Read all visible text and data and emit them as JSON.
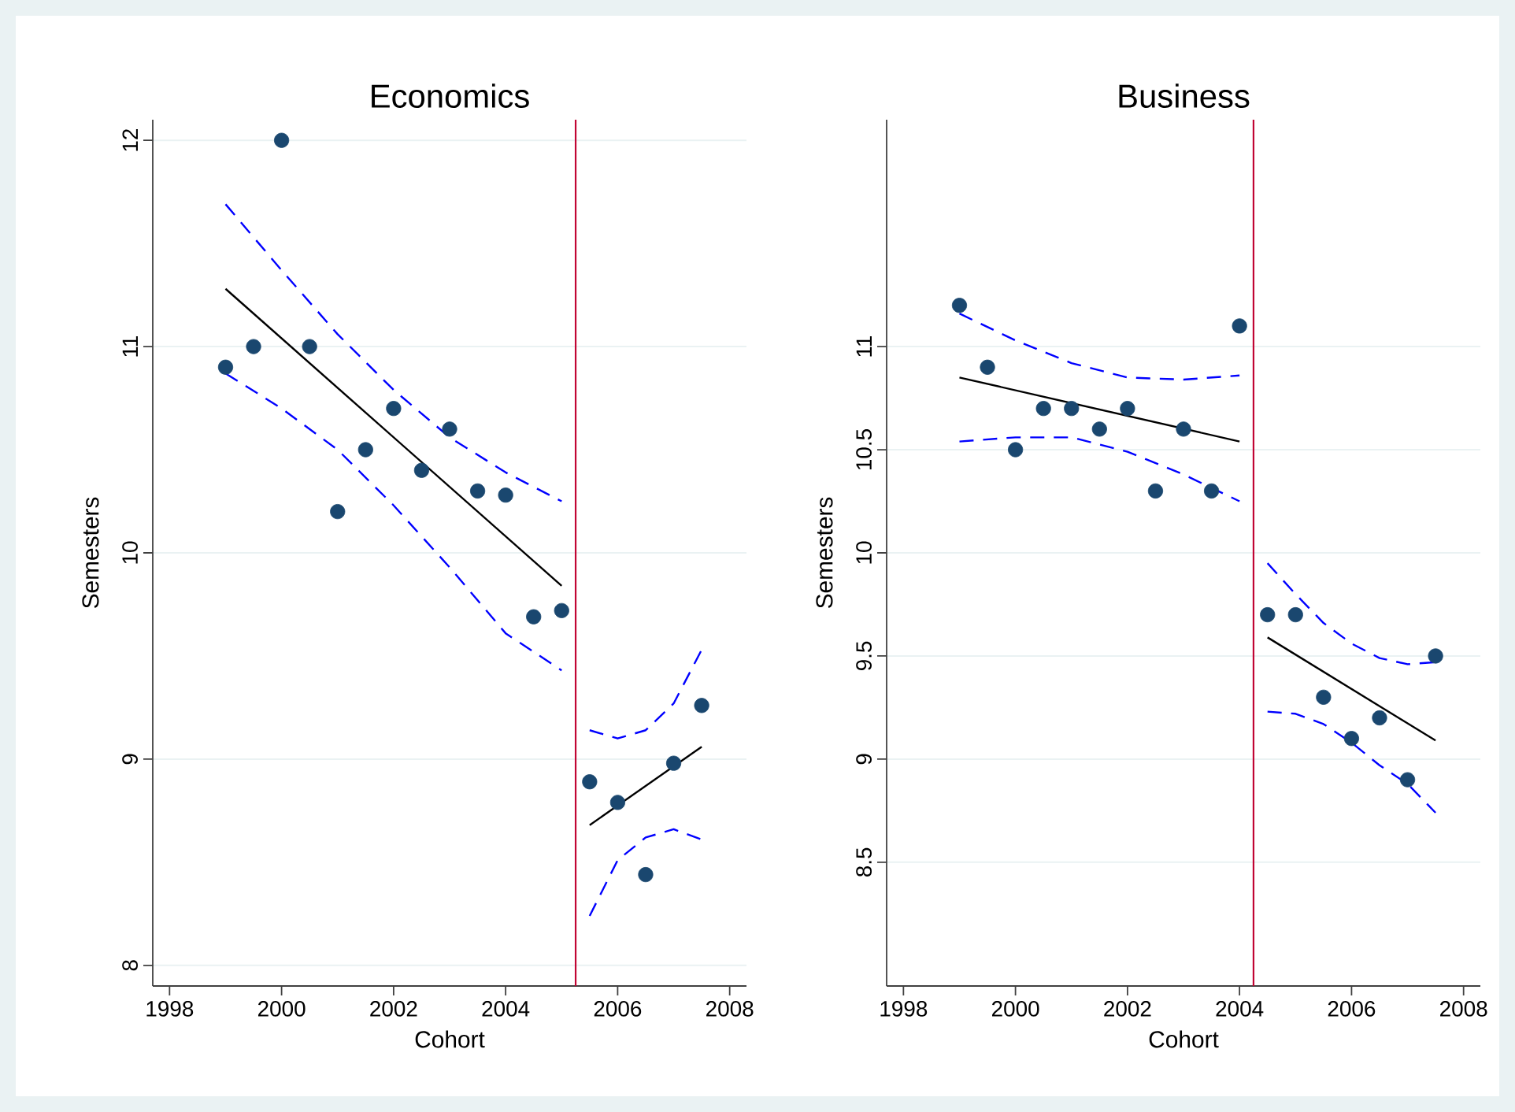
{
  "chart_data": [
    {
      "type": "scatter",
      "title": "Economics",
      "xlabel": "Cohort",
      "ylabel": "Semesters",
      "xlim": [
        1997.7,
        2008.3
      ],
      "ylim": [
        7.9,
        12.1
      ],
      "xticks": [
        1998,
        2000,
        2002,
        2004,
        2006,
        2008
      ],
      "yticks": [
        8,
        9,
        10,
        11,
        12
      ],
      "grid": "y",
      "ref_lines": [
        {
          "axis": "x",
          "value": 2005.25,
          "color": "#c10534"
        }
      ],
      "series": [
        {
          "color": "#1a476f",
          "x": [
            1999,
            1999.5,
            2000,
            2000.5,
            2001,
            2001.5,
            2002,
            2002.5,
            2003,
            2003.5,
            2004,
            2004.5,
            2005,
            2005.5,
            2006,
            2006.5,
            2007,
            2007.5
          ],
          "values": [
            10.9,
            11.0,
            12.0,
            11.0,
            10.2,
            10.5,
            10.7,
            10.4,
            10.6,
            10.3,
            10.28,
            9.69,
            9.72,
            8.89,
            8.79,
            8.44,
            8.98,
            9.26
          ]
        },
        {
          "type": "line",
          "line_style": "solid",
          "color": "#000000",
          "x": [
            1999,
            2005
          ],
          "values": [
            11.28,
            9.84
          ]
        },
        {
          "type": "line",
          "line_style": "dashed",
          "color": "#0000ff",
          "x": [
            1999,
            2000,
            2001,
            2002,
            2003,
            2004,
            2005
          ],
          "values": [
            11.69,
            11.37,
            11.06,
            10.79,
            10.56,
            10.39,
            10.25
          ]
        },
        {
          "type": "line",
          "line_style": "dashed",
          "color": "#0000ff",
          "x": [
            1999,
            2000,
            2001,
            2002,
            2003,
            2004,
            2005
          ],
          "values": [
            10.87,
            10.7,
            10.5,
            10.23,
            9.93,
            9.61,
            9.43
          ]
        },
        {
          "type": "line",
          "line_style": "solid",
          "color": "#000000",
          "x": [
            2005.5,
            2007.5
          ],
          "values": [
            8.68,
            9.06
          ]
        },
        {
          "type": "line",
          "line_style": "dashed",
          "color": "#0000ff",
          "x": [
            2005.5,
            2006,
            2006.5,
            2007,
            2007.5
          ],
          "values": [
            9.14,
            9.1,
            9.14,
            9.27,
            9.53
          ]
        },
        {
          "type": "line",
          "line_style": "dashed",
          "color": "#0000ff",
          "x": [
            2005.5,
            2006,
            2006.5,
            2007,
            2007.5
          ],
          "values": [
            8.24,
            8.51,
            8.62,
            8.66,
            8.61
          ]
        }
      ]
    },
    {
      "type": "scatter",
      "title": "Business",
      "xlabel": "Cohort",
      "ylabel": "Semesters",
      "xlim": [
        1997.7,
        2008.3
      ],
      "ylim": [
        7.9,
        12.1
      ],
      "xticks": [
        1998,
        2000,
        2002,
        2004,
        2006,
        2008
      ],
      "yticks": [
        8.5,
        9,
        9.5,
        10,
        10.5,
        11
      ],
      "grid": "y",
      "ref_lines": [
        {
          "axis": "x",
          "value": 2004.25,
          "color": "#c10534"
        }
      ],
      "series": [
        {
          "color": "#1a476f",
          "x": [
            1999,
            1999.5,
            2000,
            2000.5,
            2001,
            2001.5,
            2002,
            2002.5,
            2003,
            2003.5,
            2004,
            2004.5,
            2005,
            2005.5,
            2006,
            2006.5,
            2007,
            2007.5
          ],
          "values": [
            11.2,
            10.9,
            10.5,
            10.7,
            10.7,
            10.6,
            10.7,
            10.3,
            10.6,
            10.3,
            11.1,
            9.7,
            9.7,
            9.3,
            9.1,
            9.2,
            8.9,
            9.5
          ]
        },
        {
          "type": "line",
          "line_style": "solid",
          "color": "#000000",
          "x": [
            1999,
            2004
          ],
          "values": [
            10.85,
            10.54
          ]
        },
        {
          "type": "line",
          "line_style": "dashed",
          "color": "#0000ff",
          "x": [
            1999,
            2000,
            2001,
            2002,
            2003,
            2004
          ],
          "values": [
            11.16,
            11.03,
            10.92,
            10.85,
            10.84,
            10.86
          ]
        },
        {
          "type": "line",
          "line_style": "dashed",
          "color": "#0000ff",
          "x": [
            1999,
            2000,
            2001,
            2002,
            2003,
            2004
          ],
          "values": [
            10.54,
            10.56,
            10.56,
            10.49,
            10.38,
            10.25
          ]
        },
        {
          "type": "line",
          "line_style": "solid",
          "color": "#000000",
          "x": [
            2004.5,
            2007.5
          ],
          "values": [
            9.59,
            9.09
          ]
        },
        {
          "type": "line",
          "line_style": "dashed",
          "color": "#0000ff",
          "x": [
            2004.5,
            2005,
            2005.5,
            2006,
            2006.5,
            2007,
            2007.5
          ],
          "values": [
            9.95,
            9.8,
            9.66,
            9.56,
            9.49,
            9.46,
            9.47
          ]
        },
        {
          "type": "line",
          "line_style": "dashed",
          "color": "#0000ff",
          "x": [
            2004.5,
            2005,
            2005.5,
            2006,
            2006.5,
            2007,
            2007.5
          ],
          "values": [
            9.23,
            9.22,
            9.17,
            9.08,
            8.97,
            8.88,
            8.74
          ]
        }
      ]
    }
  ]
}
